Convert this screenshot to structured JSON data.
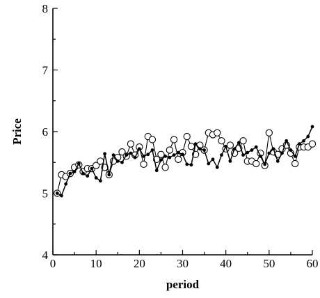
{
  "chart_data": {
    "type": "line",
    "title": "",
    "xlabel": "period",
    "ylabel": "Price",
    "xlim": [
      0,
      60
    ],
    "ylim": [
      4,
      8
    ],
    "x_ticks": [
      0,
      10,
      20,
      30,
      40,
      50,
      60
    ],
    "x_tick_labels": [
      "0",
      "10",
      "20",
      "30",
      "40",
      "50",
      "60"
    ],
    "y_ticks": [
      4,
      5,
      6,
      7,
      8
    ],
    "y_tick_labels": [
      "4",
      "5",
      "6",
      "7",
      "8"
    ],
    "grid": false,
    "legend": "none",
    "series": [
      {
        "marker": "filled-dot",
        "color": "#000000",
        "x": [
          1,
          2,
          3,
          4,
          5,
          6,
          7,
          8,
          9,
          10,
          11,
          12,
          13,
          14,
          15,
          16,
          17,
          18,
          19,
          20,
          21,
          22,
          23,
          24,
          25,
          26,
          27,
          28,
          29,
          30,
          31,
          32,
          33,
          34,
          35,
          36,
          37,
          38,
          39,
          40,
          41,
          42,
          43,
          44,
          45,
          46,
          47,
          48,
          49,
          50,
          51,
          52,
          53,
          54,
          55,
          56,
          57,
          58,
          59,
          60
        ],
        "y": [
          5.0,
          4.96,
          5.15,
          5.32,
          5.35,
          5.48,
          5.32,
          5.28,
          5.4,
          5.25,
          5.2,
          5.64,
          5.3,
          5.62,
          5.52,
          5.5,
          5.62,
          5.65,
          5.58,
          5.72,
          5.6,
          5.63,
          5.7,
          5.37,
          5.54,
          5.6,
          5.58,
          5.62,
          5.66,
          5.63,
          5.47,
          5.46,
          5.8,
          5.72,
          5.7,
          5.48,
          5.55,
          5.42,
          5.62,
          5.76,
          5.52,
          5.72,
          5.82,
          5.62,
          5.66,
          5.7,
          5.75,
          5.6,
          5.47,
          5.65,
          5.72,
          5.52,
          5.65,
          5.85,
          5.7,
          5.6,
          5.8,
          5.85,
          5.92,
          6.08
        ]
      },
      {
        "marker": "open-circle",
        "color": "#000000",
        "x": [
          1,
          2,
          3,
          4,
          5,
          6,
          7,
          8,
          9,
          10,
          11,
          12,
          13,
          14,
          15,
          16,
          17,
          18,
          19,
          20,
          21,
          22,
          23,
          24,
          25,
          26,
          27,
          28,
          29,
          30,
          31,
          32,
          33,
          34,
          35,
          36,
          37,
          38,
          39,
          40,
          41,
          42,
          43,
          44,
          45,
          46,
          47,
          48,
          49,
          50,
          51,
          52,
          53,
          54,
          55,
          56,
          57,
          58,
          59,
          60
        ],
        "y": [
          5.0,
          5.3,
          5.27,
          5.32,
          5.42,
          5.46,
          5.35,
          5.4,
          5.4,
          5.45,
          5.52,
          5.42,
          5.3,
          5.52,
          5.58,
          5.67,
          5.6,
          5.8,
          5.62,
          5.75,
          5.47,
          5.92,
          5.87,
          5.55,
          5.63,
          5.42,
          5.7,
          5.87,
          5.55,
          5.66,
          5.92,
          5.76,
          5.63,
          5.78,
          5.7,
          5.98,
          5.95,
          5.98,
          5.85,
          5.72,
          5.78,
          5.65,
          5.73,
          5.85,
          5.52,
          5.52,
          5.48,
          5.65,
          5.45,
          5.98,
          5.67,
          5.63,
          5.72,
          5.78,
          5.65,
          5.48,
          5.75,
          5.75,
          5.75,
          5.8
        ]
      }
    ]
  }
}
